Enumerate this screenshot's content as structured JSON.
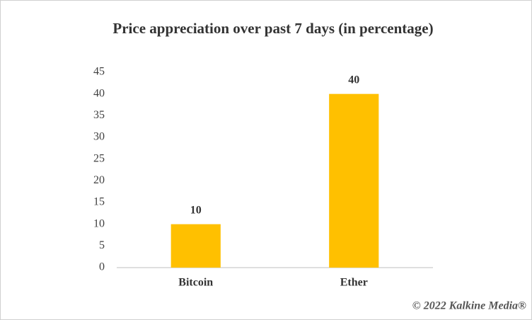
{
  "chart_data": {
    "type": "bar",
    "title": "Price appreciation over past 7 days (in percentage)",
    "categories": [
      "Bitcoin",
      "Ether"
    ],
    "values": [
      10,
      40
    ],
    "color": "#ffc000",
    "ylim": [
      0,
      45
    ],
    "yticks": [
      0,
      5,
      10,
      15,
      20,
      25,
      30,
      35,
      40,
      45
    ],
    "grid": false,
    "watermark": "© 2022 Kalkine Media®"
  }
}
